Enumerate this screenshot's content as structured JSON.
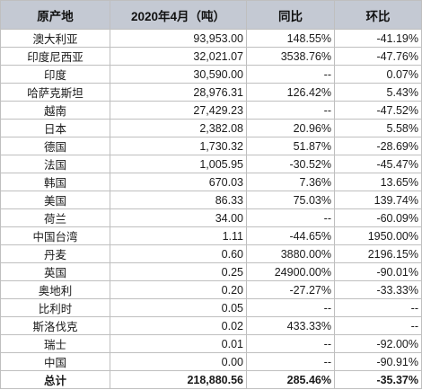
{
  "table": {
    "headers": [
      "原产地",
      "2020年4月（吨）",
      "同比",
      "环比"
    ],
    "rows": [
      [
        "澳大利亚",
        "93,953.00",
        "148.55%",
        "-41.19%"
      ],
      [
        "印度尼西亚",
        "32,021.07",
        "3538.76%",
        "-47.76%"
      ],
      [
        "印度",
        "30,590.00",
        "--",
        "0.07%"
      ],
      [
        "哈萨克斯坦",
        "28,976.31",
        "126.42%",
        "5.43%"
      ],
      [
        "越南",
        "27,429.23",
        "--",
        "-47.52%"
      ],
      [
        "日本",
        "2,382.08",
        "20.96%",
        "5.58%"
      ],
      [
        "德国",
        "1,730.32",
        "51.87%",
        "-28.69%"
      ],
      [
        "法国",
        "1,005.95",
        "-30.52%",
        "-45.47%"
      ],
      [
        "韩国",
        "670.03",
        "7.36%",
        "13.65%"
      ],
      [
        "美国",
        "86.33",
        "75.03%",
        "139.74%"
      ],
      [
        "荷兰",
        "34.00",
        "--",
        "-60.09%"
      ],
      [
        "中国台湾",
        "1.11",
        "-44.65%",
        "1950.00%"
      ],
      [
        "丹麦",
        "0.60",
        "3880.00%",
        "2196.15%"
      ],
      [
        "英国",
        "0.25",
        "24900.00%",
        "-90.01%"
      ],
      [
        "奥地利",
        "0.20",
        "-27.27%",
        "-33.33%"
      ],
      [
        "比利时",
        "0.05",
        "--",
        "--"
      ],
      [
        "斯洛伐克",
        "0.02",
        "433.33%",
        "--"
      ],
      [
        "瑞士",
        "0.01",
        "--",
        "-92.00%"
      ],
      [
        "中国",
        "0.00",
        "--",
        "-90.91%"
      ]
    ],
    "total": [
      "总计",
      "218,880.56",
      "285.46%",
      "-35.37%"
    ]
  }
}
